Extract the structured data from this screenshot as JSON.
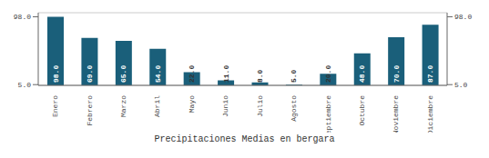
{
  "chart_data": {
    "type": "bar",
    "title": "Precipitaciones Medias en bergara",
    "categories": [
      "Enero",
      "Febrero",
      "Marzo",
      "Abril",
      "Mayo",
      "Junio",
      "Julio",
      "Agosto",
      "Septiembre",
      "Octubre",
      "Noviembre",
      "Diciembre"
    ],
    "values": [
      98.0,
      69.0,
      65.0,
      54.0,
      22.0,
      11.0,
      8.0,
      5.0,
      20.0,
      48.0,
      70.0,
      87.0
    ],
    "value_labels": [
      "98.0",
      "69.0",
      "65.0",
      "54.0",
      "22.0",
      "11.0",
      "8.0",
      "5.0",
      "20.0",
      "48.0",
      "70.0",
      "87.0"
    ],
    "color": "#1a5f7a",
    "ylim": [
      4,
      103.58
    ],
    "yticks": [
      {
        "value": 5,
        "label": "5.0"
      },
      {
        "value": 98,
        "label": "98.0"
      }
    ],
    "y2lim": [
      4,
      103.58
    ],
    "y2ticks": [
      {
        "value": 5,
        "label": "5.0"
      },
      {
        "value": 98,
        "label": "98.0"
      }
    ],
    "grid": true,
    "data_labels": true
  }
}
